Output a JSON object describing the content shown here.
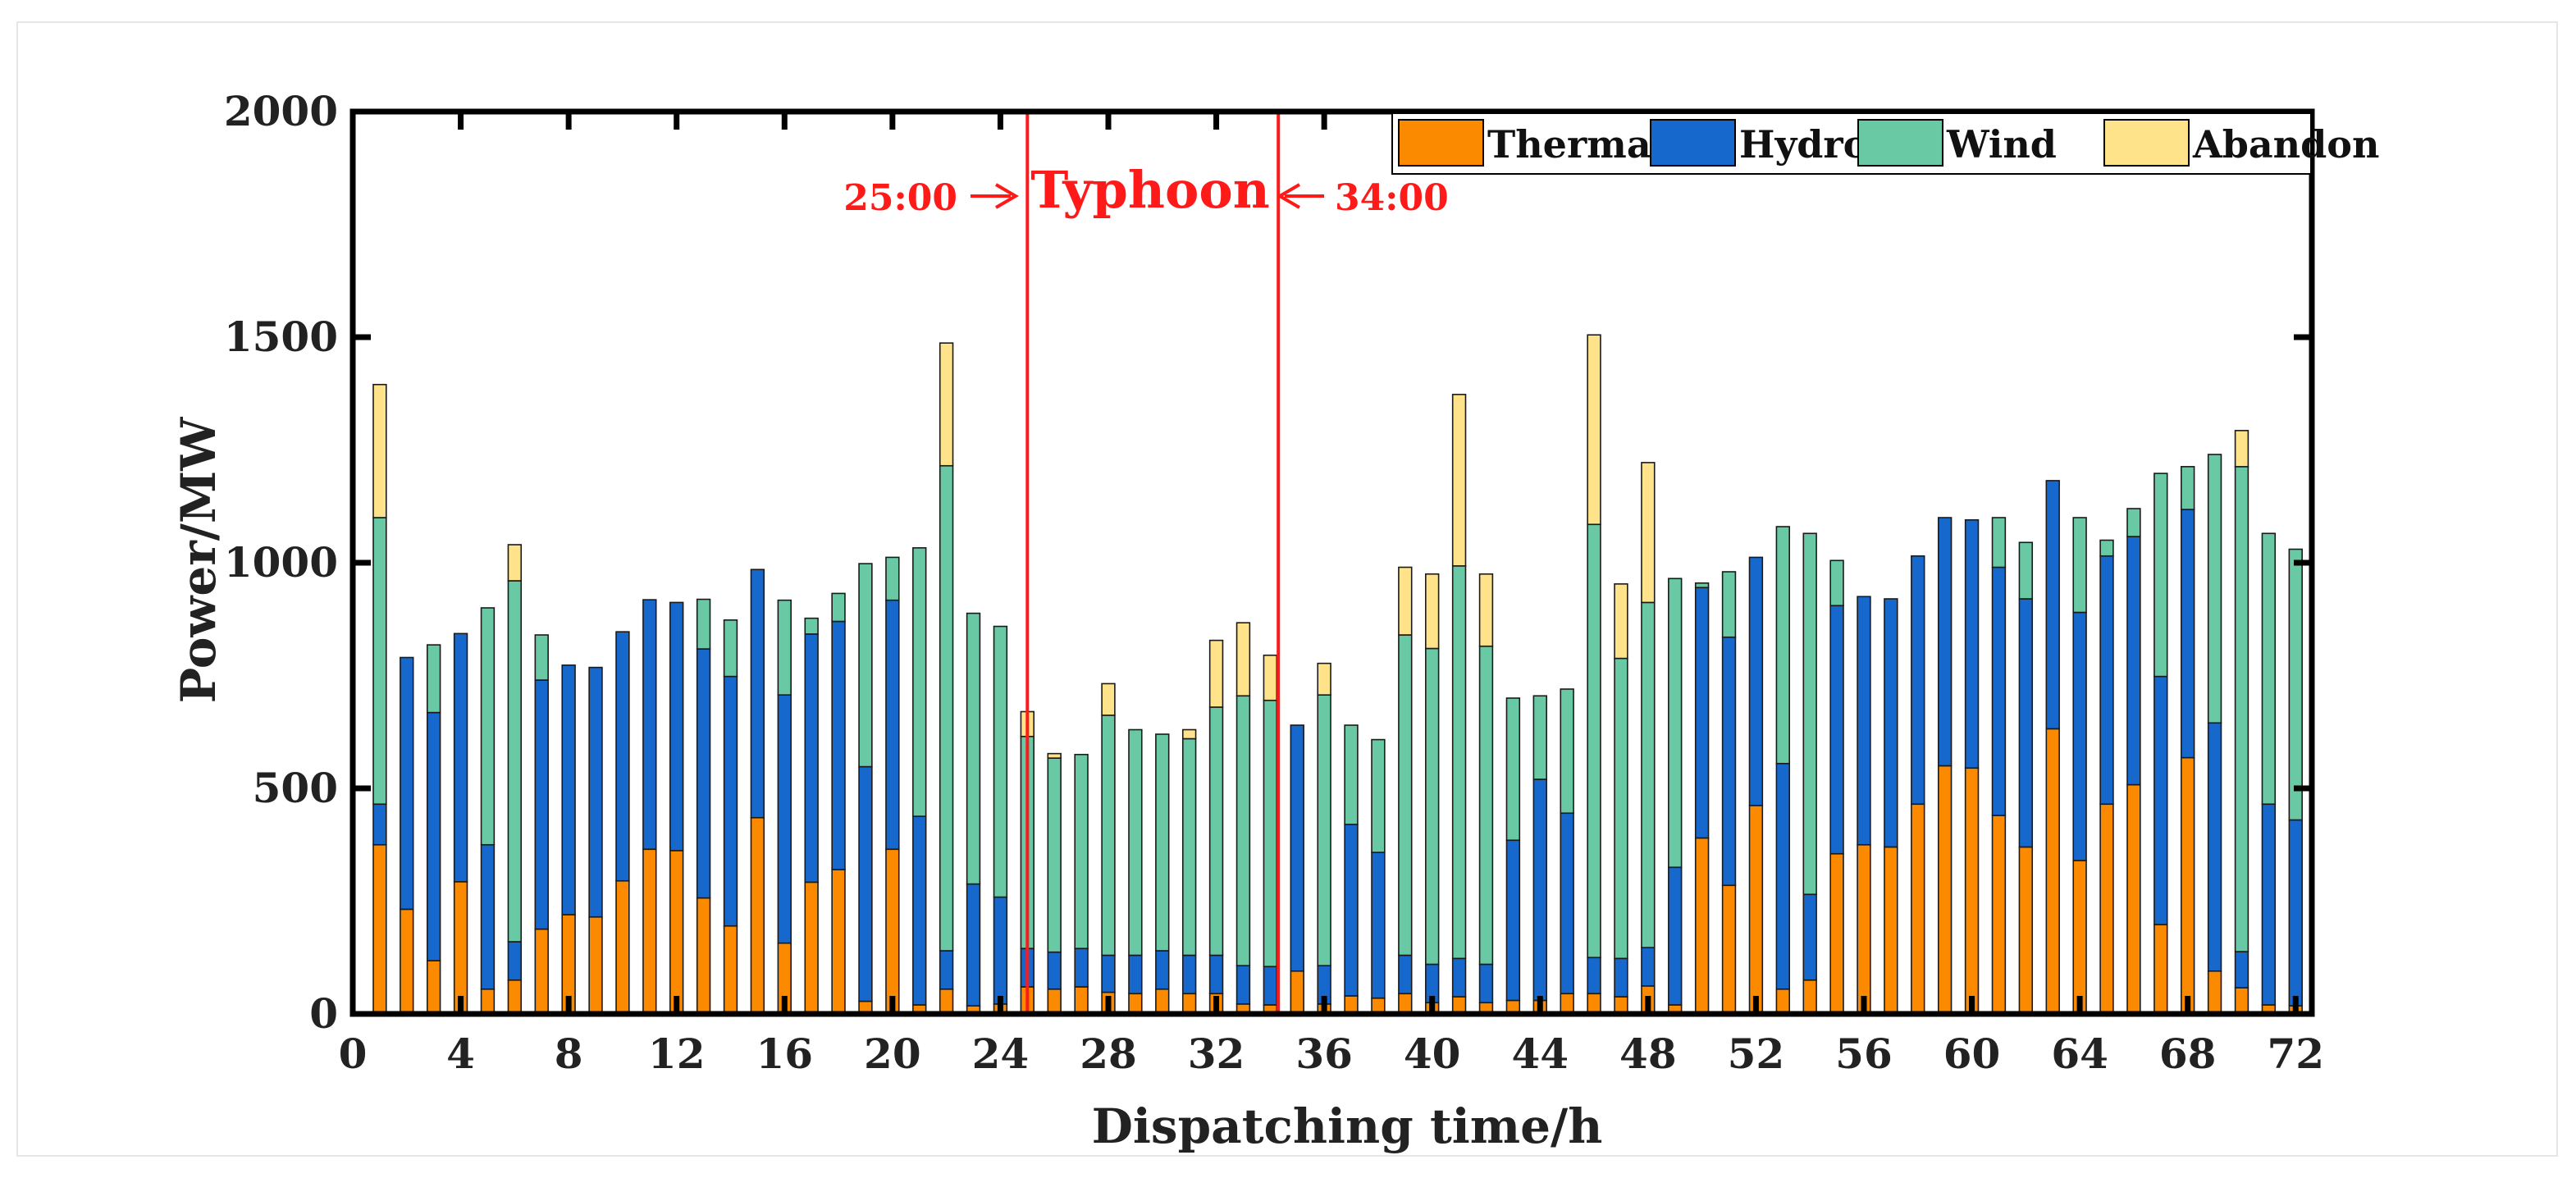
{
  "chart_data": {
    "type": "bar",
    "stacked": true,
    "title": "",
    "xlabel": "Dispatching time/h",
    "ylabel": "Power/MW",
    "xlim": [
      0,
      72.6
    ],
    "ylim": [
      0,
      2000
    ],
    "x_ticks": [
      0,
      4,
      8,
      12,
      16,
      20,
      24,
      28,
      32,
      36,
      40,
      44,
      48,
      52,
      56,
      60,
      64,
      68,
      72
    ],
    "y_ticks": [
      0,
      500,
      1000,
      1500,
      2000
    ],
    "grid": false,
    "legend_position": "top-right",
    "x": [
      1,
      2,
      3,
      4,
      5,
      6,
      7,
      8,
      9,
      10,
      11,
      12,
      13,
      14,
      15,
      16,
      17,
      18,
      19,
      20,
      21,
      22,
      23,
      24,
      25,
      26,
      27,
      28,
      29,
      30,
      31,
      32,
      33,
      34,
      35,
      36,
      37,
      38,
      39,
      40,
      41,
      42,
      43,
      44,
      45,
      46,
      47,
      48,
      49,
      50,
      51,
      52,
      53,
      54,
      55,
      56,
      57,
      58,
      59,
      60,
      61,
      62,
      63,
      64,
      65,
      66,
      67,
      68,
      69,
      70,
      71,
      72
    ],
    "series": [
      {
        "name": "Thermal",
        "color": "#fb8a00",
        "values": [
          375,
          232,
          118,
          293,
          55,
          75,
          188,
          220,
          215,
          295,
          365,
          362,
          257,
          195,
          435,
          157,
          292,
          320,
          28,
          365,
          20,
          55,
          18,
          22,
          60,
          55,
          60,
          48,
          45,
          55,
          45,
          45,
          22,
          20,
          95,
          22,
          40,
          35,
          45,
          25,
          38,
          25,
          30,
          30,
          45,
          45,
          38,
          62,
          20,
          390,
          285,
          462,
          55,
          75,
          355,
          375,
          370,
          465,
          550,
          545,
          440,
          370,
          632,
          340,
          465,
          508,
          198,
          568,
          95,
          58,
          20,
          18
        ]
      },
      {
        "name": "Hydro",
        "color": "#1668cd",
        "values": [
          90,
          558,
          550,
          550,
          320,
          85,
          552,
          553,
          553,
          552,
          553,
          550,
          552,
          553,
          550,
          550,
          550,
          550,
          520,
          552,
          418,
          85,
          270,
          237,
          85,
          82,
          85,
          82,
          85,
          85,
          85,
          85,
          85,
          85,
          545,
          85,
          380,
          323,
          85,
          85,
          85,
          85,
          355,
          490,
          400,
          80,
          85,
          85,
          305,
          555,
          550,
          550,
          500,
          190,
          550,
          550,
          550,
          550,
          550,
          550,
          550,
          550,
          550,
          550,
          550,
          550,
          550,
          550,
          550,
          80,
          445,
          412
        ]
      },
      {
        "name": "Wind",
        "color": "#68c9a4",
        "values": [
          635,
          0,
          150,
          0,
          525,
          800,
          100,
          0,
          0,
          0,
          0,
          0,
          110,
          125,
          0,
          210,
          35,
          62,
          450,
          95,
          595,
          1075,
          600,
          600,
          470,
          430,
          430,
          532,
          500,
          480,
          480,
          550,
          598,
          590,
          0,
          600,
          220,
          250,
          710,
          700,
          870,
          705,
          315,
          185,
          275,
          960,
          665,
          765,
          640,
          10,
          145,
          0,
          525,
          800,
          100,
          0,
          0,
          0,
          0,
          0,
          110,
          125,
          0,
          210,
          35,
          62,
          450,
          95,
          595,
          1075,
          600,
          600
        ]
      },
      {
        "name": "Abandon",
        "color": "#ffe38a",
        "values": [
          295,
          0,
          0,
          0,
          0,
          80,
          0,
          0,
          0,
          0,
          0,
          0,
          0,
          0,
          0,
          0,
          0,
          0,
          0,
          0,
          0,
          272,
          0,
          0,
          55,
          10,
          0,
          70,
          0,
          0,
          20,
          148,
          162,
          100,
          0,
          70,
          0,
          0,
          150,
          165,
          380,
          160,
          0,
          0,
          0,
          420,
          165,
          310,
          0,
          0,
          0,
          0,
          0,
          0,
          0,
          0,
          0,
          0,
          0,
          0,
          0,
          0,
          0,
          0,
          0,
          0,
          0,
          0,
          0,
          80,
          0,
          0
        ]
      }
    ],
    "annotations": {
      "event_label": "Typhoon",
      "start_label": "25:00",
      "end_label": "34:00",
      "start_x": 25,
      "end_x": 34.3,
      "color": "#ff1a1a"
    }
  }
}
